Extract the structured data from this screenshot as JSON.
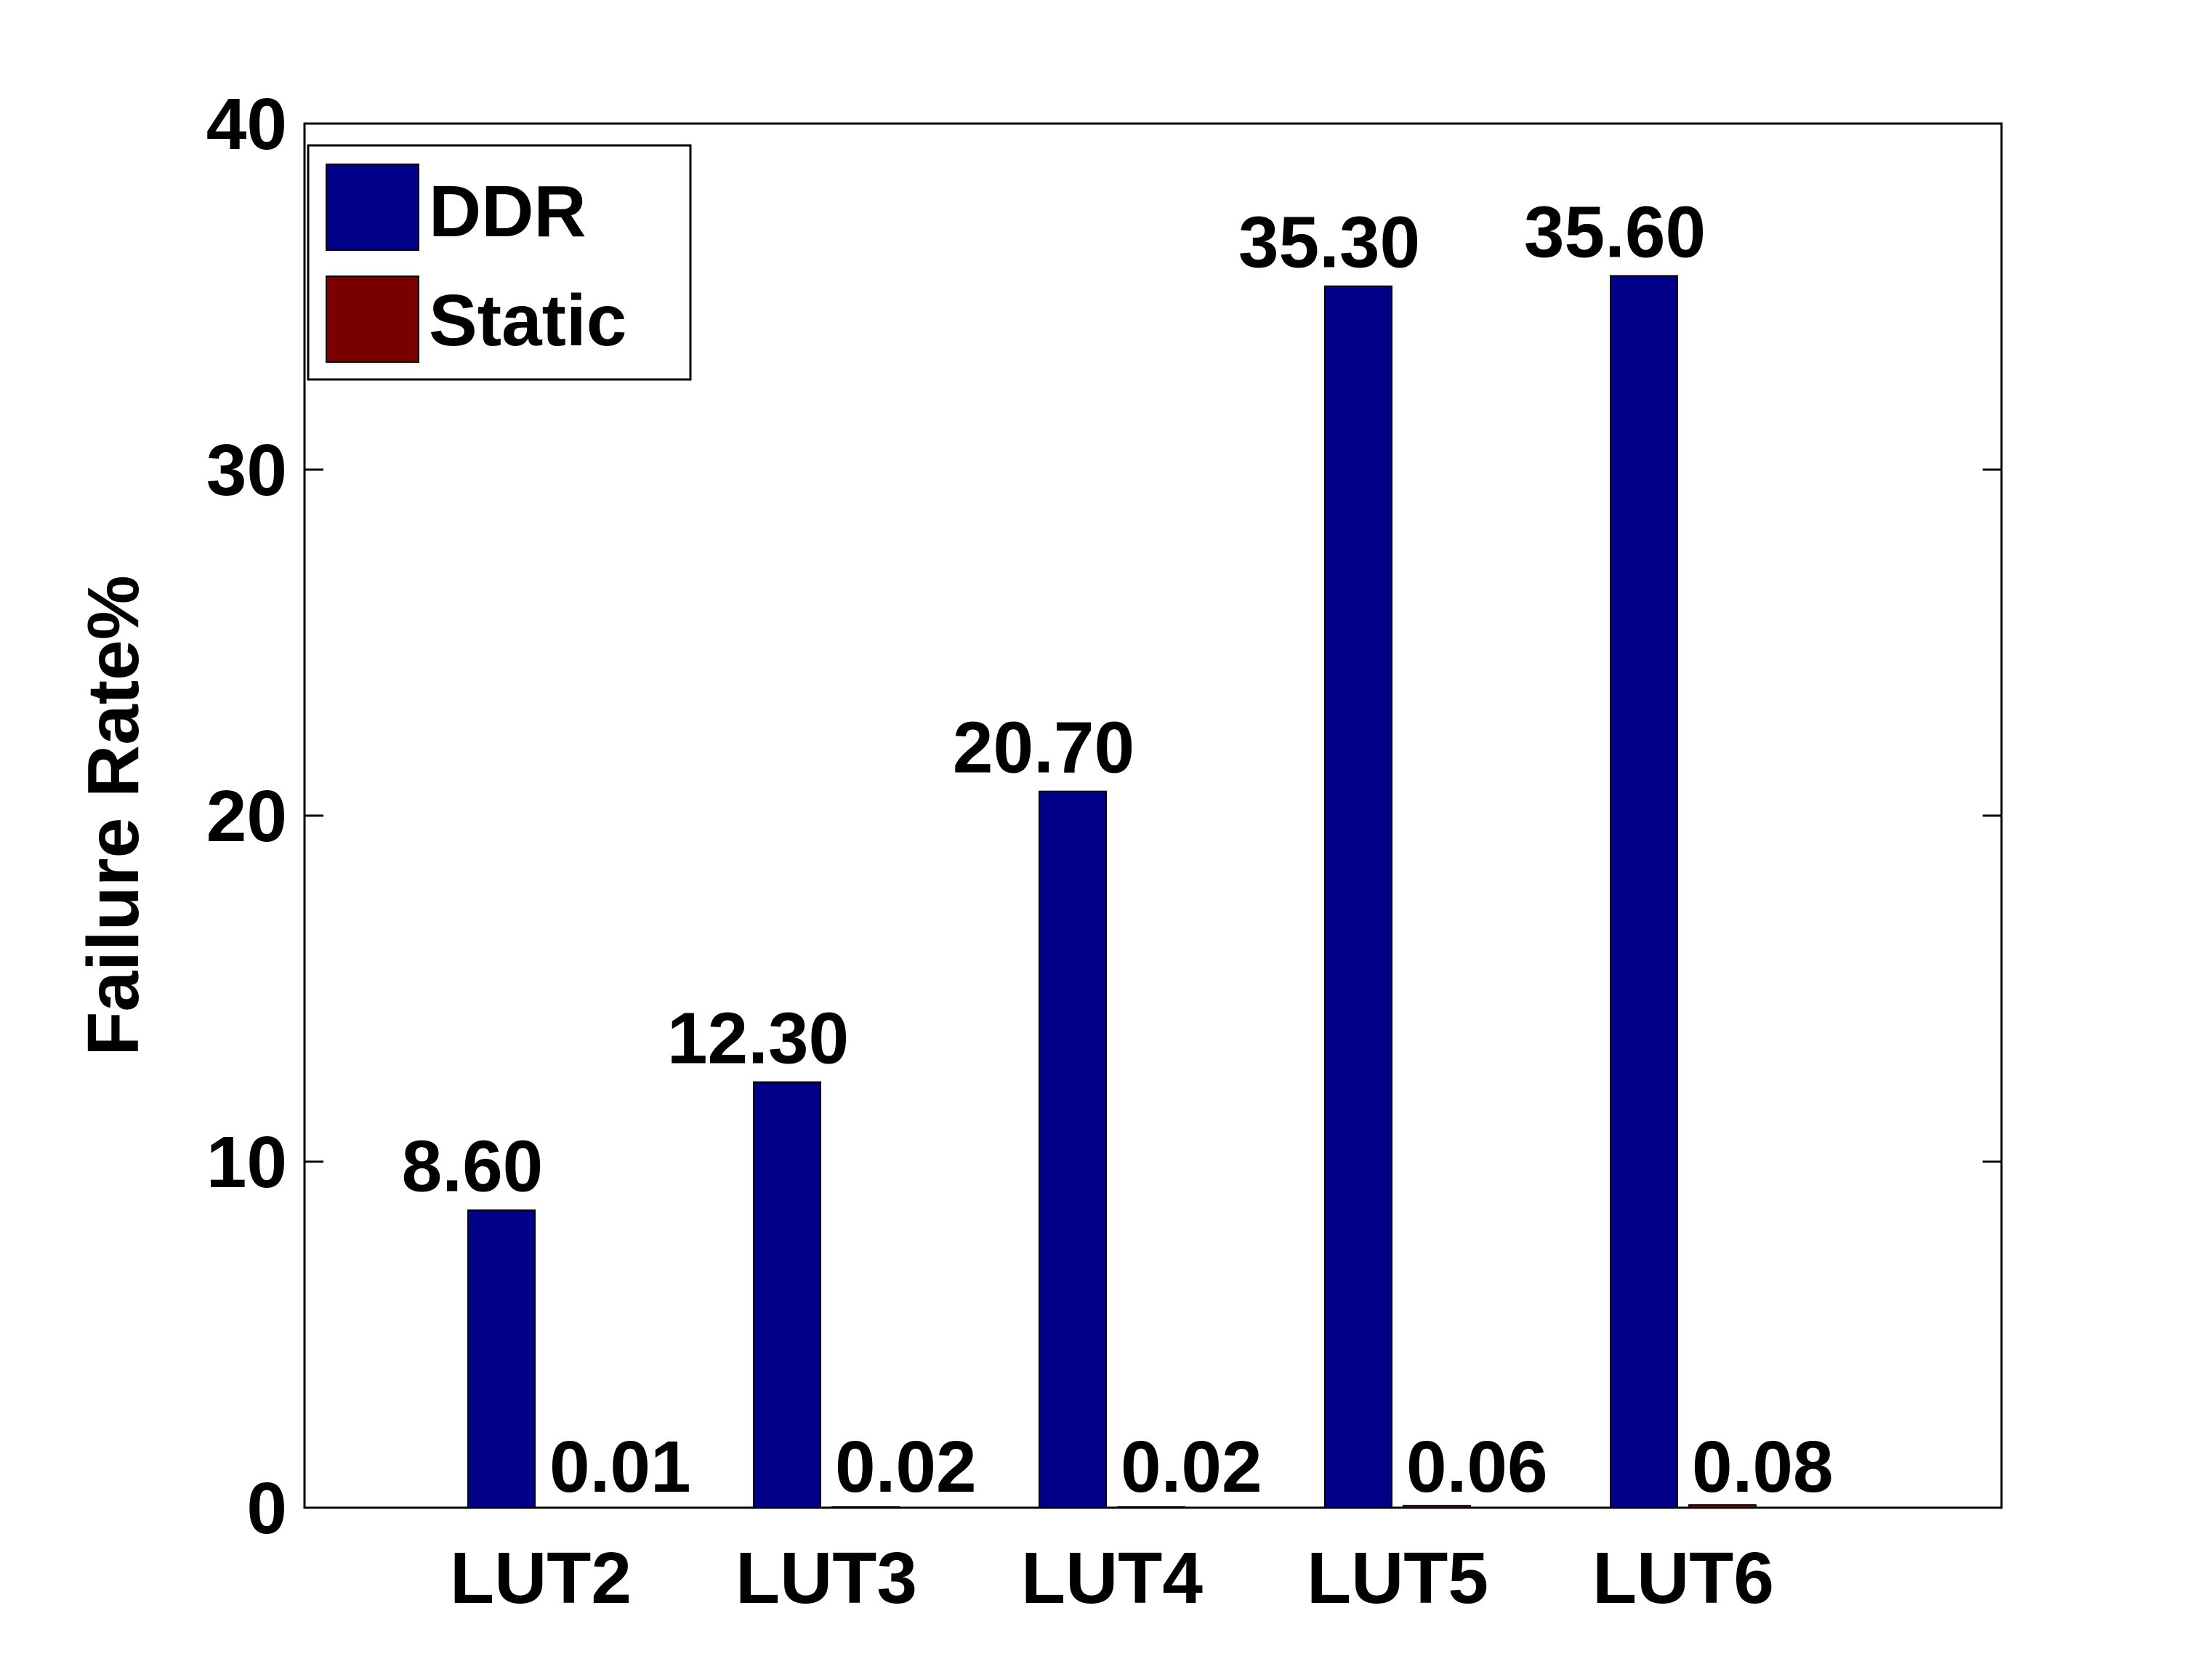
{
  "chart_data": {
    "type": "bar",
    "title": "",
    "xlabel": "",
    "ylabel": "Failure Rate%",
    "ylim": [
      0,
      40
    ],
    "yticks": [
      0,
      10,
      20,
      30,
      40
    ],
    "categories": [
      "LUT2",
      "LUT3",
      "LUT4",
      "LUT5",
      "LUT6"
    ],
    "series": [
      {
        "name": "DDR",
        "color": "#000088",
        "values": [
          8.6,
          12.3,
          20.7,
          35.3,
          35.6
        ],
        "labels": [
          "8.60",
          "12.30",
          "20.70",
          "35.30",
          "35.60"
        ]
      },
      {
        "name": "Static",
        "color": "#7a0000",
        "values": [
          0.01,
          0.02,
          0.02,
          0.06,
          0.08
        ],
        "labels": [
          "0.01",
          "0.02",
          "0.02",
          "0.06",
          "0.08"
        ]
      }
    ],
    "legend": {
      "position": "top-left"
    },
    "grid": false
  }
}
